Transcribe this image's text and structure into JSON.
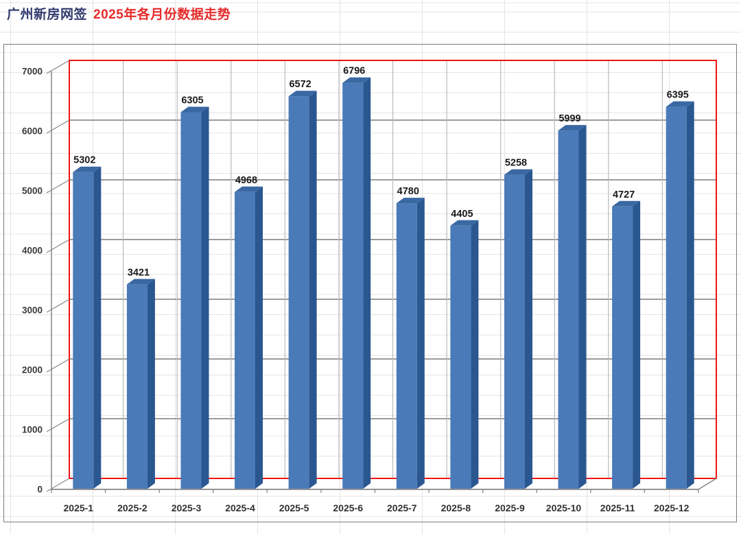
{
  "title": {
    "primary": "广州新房网签",
    "accent": "2025年各月份数据走势"
  },
  "chart_data": {
    "type": "bar",
    "style": "3d-column",
    "title": "广州新房网签 2025年各月份数据走势",
    "categories": [
      "2025-1",
      "2025-2",
      "2025-3",
      "2025-4",
      "2025-5",
      "2025-6",
      "2025-7",
      "2025-8",
      "2025-9",
      "2025-10",
      "2025-11",
      "2025-12"
    ],
    "values": [
      5302,
      3421,
      6305,
      4968,
      6572,
      6796,
      4780,
      4405,
      5258,
      5999,
      4727,
      6395
    ],
    "xlabel": "",
    "ylabel": "",
    "ylim": [
      0,
      7000
    ],
    "yticks": [
      0,
      1000,
      2000,
      3000,
      4000,
      5000,
      6000,
      7000
    ],
    "ytick_labels": [
      "0",
      "1000",
      "2000",
      "3000",
      "4000",
      "5000",
      "6000",
      "7000"
    ],
    "grid": true,
    "legend": "none",
    "data_labels": true,
    "colors": {
      "bar_front": "#4a7ab8",
      "bar_side": "#2b5791",
      "bar_top": "#3a68a3",
      "plot_border": "#f01414",
      "gridline": "#8e8e8e",
      "category_line": "#b9b9b9",
      "axis": "#858585",
      "value_label": "#1a1a1a",
      "tick_label": "#3a3a3a",
      "category_label": "#303030",
      "title_primary": "#313a6d",
      "title_accent": "#e62b2b",
      "chart_border": "#7b7b7b",
      "sheet_gridline": "#e4e4e4"
    }
  }
}
